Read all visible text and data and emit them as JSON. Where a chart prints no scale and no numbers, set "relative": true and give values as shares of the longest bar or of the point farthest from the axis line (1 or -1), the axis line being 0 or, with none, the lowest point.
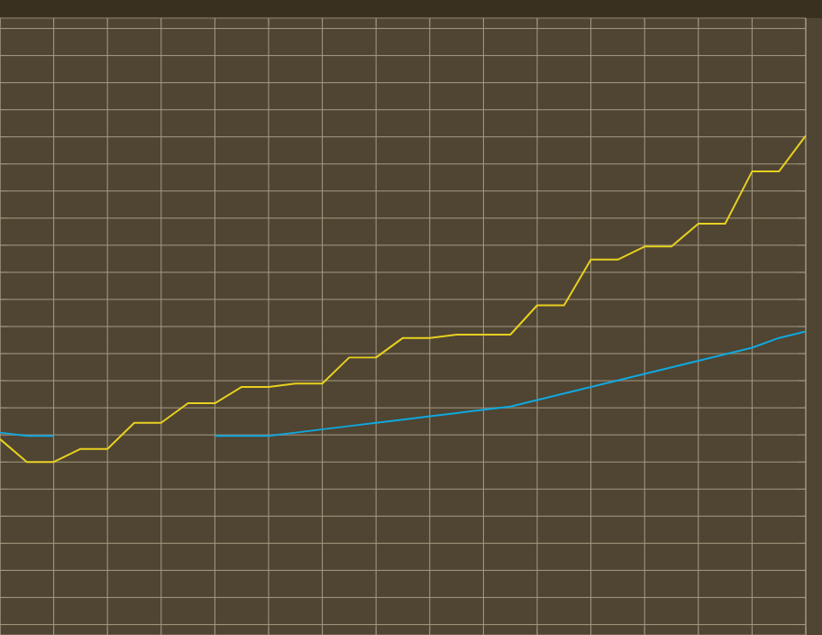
{
  "chart_data": {
    "type": "line",
    "relative": true,
    "grid": true,
    "categories": [
      null,
      null,
      null,
      null,
      null,
      null,
      null,
      null,
      null,
      null,
      null,
      null,
      null,
      null,
      null,
      null,
      null,
      null,
      null,
      null,
      null,
      null,
      null,
      null,
      null,
      null,
      null,
      null,
      null,
      null,
      null
    ],
    "series": [
      {
        "color": "#e8d020",
        "values": [
          0.07,
          0,
          0,
          0.04,
          0.04,
          0.12,
          0.12,
          0.18,
          0.18,
          0.23,
          0.23,
          0.24,
          0.24,
          0.32,
          0.32,
          0.38,
          0.38,
          0.39,
          0.39,
          0.39,
          0.48,
          0.48,
          0.62,
          0.62,
          0.66,
          0.66,
          0.73,
          0.73,
          0.89,
          0.89,
          1
        ]
      },
      {
        "color": "#10a8e0",
        "values": [
          0.09,
          0.08,
          0.08,
          null,
          null,
          null,
          null,
          null,
          0.08,
          0.08,
          0.08,
          0.09,
          0.1,
          0.11,
          0.12,
          0.13,
          0.14,
          0.15,
          0.16,
          0.17,
          0.19,
          0.21,
          0.23,
          0.25,
          0.27,
          0.29,
          0.31,
          0.33,
          0.35,
          0.38,
          0.4
        ]
      }
    ]
  }
}
